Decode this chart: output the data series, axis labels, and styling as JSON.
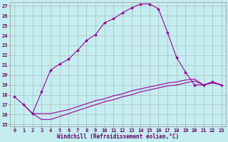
{
  "xlabel": "Windchill (Refroidissement éolien,°C)",
  "bg_color": "#c4edf0",
  "grid_color": "#999999",
  "line_color": "#990099",
  "xlim": [
    0,
    23
  ],
  "ylim": [
    15,
    27
  ],
  "yticks": [
    15,
    16,
    17,
    18,
    19,
    20,
    21,
    22,
    23,
    24,
    25,
    26,
    27
  ],
  "xticks": [
    0,
    1,
    2,
    3,
    4,
    5,
    6,
    7,
    8,
    9,
    10,
    11,
    12,
    13,
    14,
    15,
    16,
    17,
    18,
    19,
    20,
    21,
    22,
    23
  ],
  "line1_x": [
    0,
    1,
    2,
    3,
    4,
    5,
    6,
    7,
    8,
    9,
    10,
    11,
    12,
    13,
    14,
    15,
    16,
    17,
    18,
    19,
    20,
    21,
    22,
    23
  ],
  "line1_y": [
    17.8,
    17.0,
    16.1,
    18.3,
    20.5,
    21.1,
    21.6,
    22.5,
    23.5,
    24.1,
    25.3,
    25.7,
    26.3,
    26.8,
    27.2,
    27.2,
    26.7,
    24.3,
    21.8,
    20.3,
    19.0,
    19.0,
    19.3,
    19.0
  ],
  "line2_x": [
    1,
    2,
    3,
    4,
    5,
    6,
    7,
    8,
    9,
    10,
    11,
    12,
    13,
    14,
    15,
    16,
    17,
    18,
    19,
    20,
    21,
    22,
    23
  ],
  "line2_y": [
    17.0,
    16.1,
    16.1,
    16.1,
    16.3,
    16.5,
    16.8,
    17.1,
    17.4,
    17.6,
    17.9,
    18.1,
    18.4,
    18.6,
    18.8,
    19.0,
    19.2,
    19.3,
    19.5,
    19.6,
    19.0,
    19.3,
    19.0
  ],
  "line3_x": [
    1,
    2,
    3,
    4,
    5,
    6,
    7,
    8,
    9,
    10,
    11,
    12,
    13,
    14,
    15,
    16,
    17,
    18,
    19,
    20,
    21,
    22,
    23
  ],
  "line3_y": [
    17.0,
    16.1,
    15.5,
    15.5,
    15.8,
    16.1,
    16.4,
    16.7,
    17.0,
    17.3,
    17.5,
    17.8,
    18.0,
    18.3,
    18.5,
    18.7,
    18.9,
    19.0,
    19.2,
    19.4,
    19.0,
    19.2,
    19.0
  ],
  "marker": "D",
  "marker_size": 2.0,
  "line_width": 0.8,
  "font_color": "#660066",
  "tick_fontsize": 5.0,
  "label_fontsize": 5.5
}
